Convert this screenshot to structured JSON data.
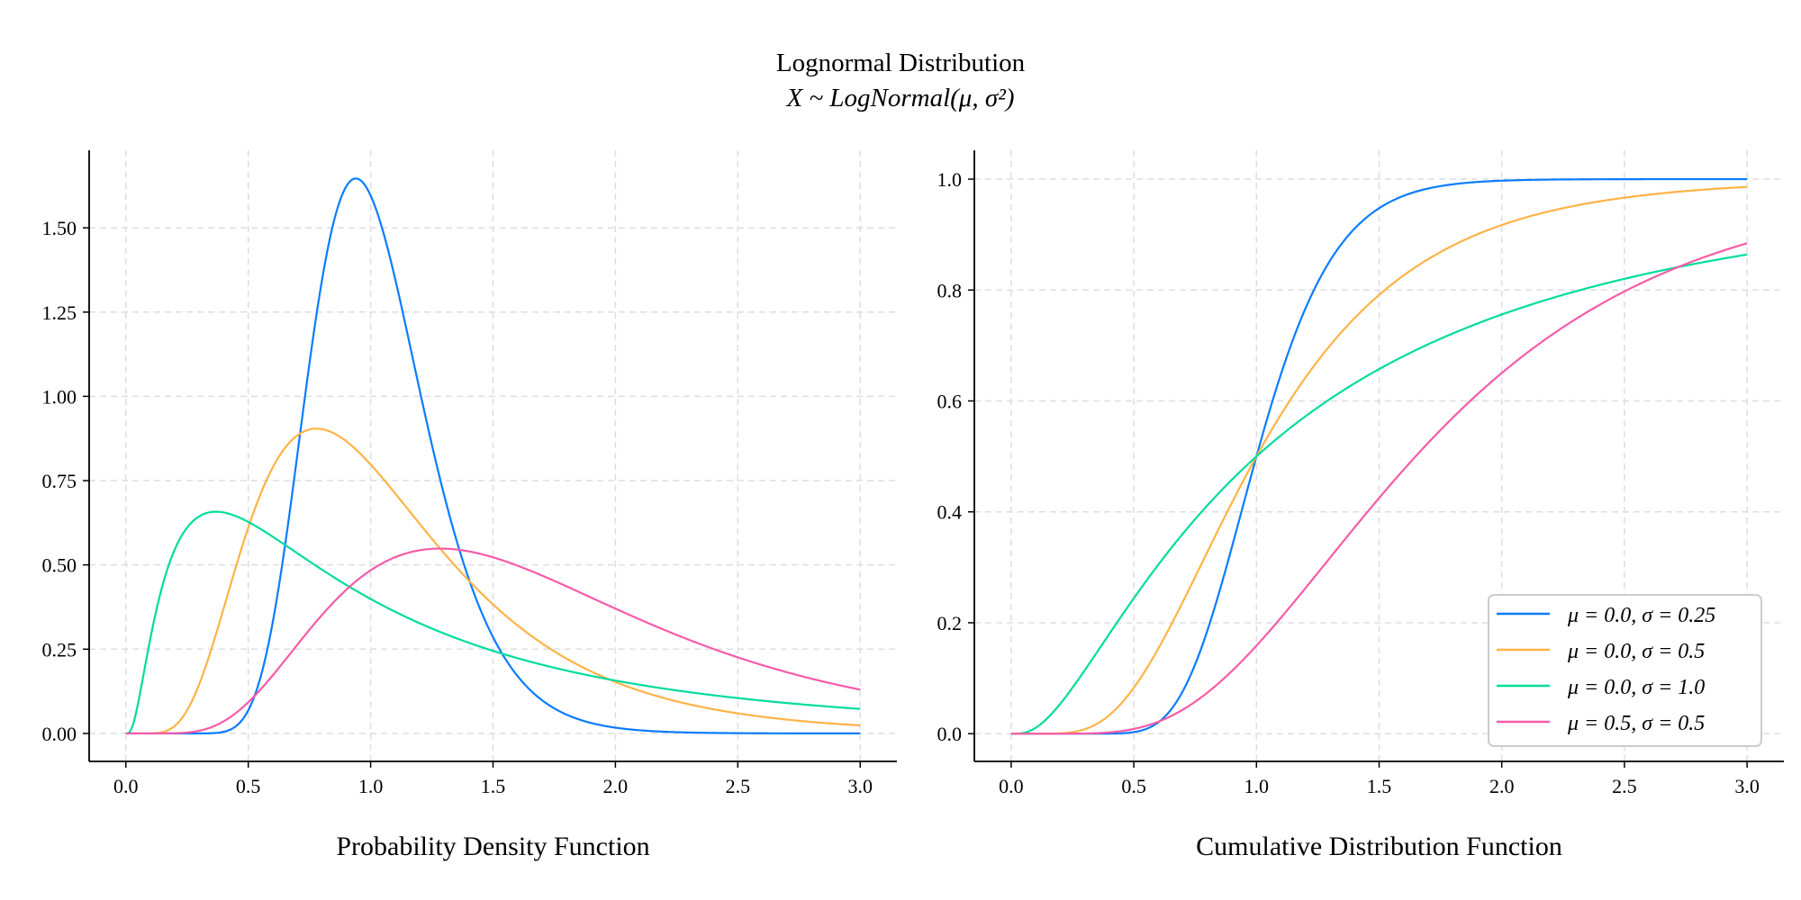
{
  "chart_data": {
    "title": "Lognormal Distribution",
    "subtitle": "X ~ LogNormal(μ, σ²)",
    "series": [
      {
        "name": "μ = 0.0, σ = 0.25",
        "mu": 0.0,
        "sigma": 0.25,
        "color": "#0a7cff"
      },
      {
        "name": "μ = 0.0, σ = 0.5",
        "mu": 0.0,
        "sigma": 0.5,
        "color": "#ffb347"
      },
      {
        "name": "μ = 0.0, σ = 1.0",
        "mu": 0.0,
        "sigma": 1.0,
        "color": "#00dc9c"
      },
      {
        "name": "μ = 0.5, σ = 0.5",
        "mu": 0.5,
        "sigma": 0.5,
        "color": "#f65ba8"
      }
    ],
    "x_domain": [
      0,
      3
    ],
    "panels": [
      {
        "type": "line",
        "function": "pdf",
        "xlabel": "Probability Density Function",
        "ylabel": "",
        "xlim": [
          -0.15,
          3.15
        ],
        "ylim": [
          -0.083,
          1.73
        ],
        "xticks": [
          "0.0",
          "0.5",
          "1.0",
          "1.5",
          "2.0",
          "2.5",
          "3.0"
        ],
        "yticks": [
          "0.00",
          "0.25",
          "0.50",
          "0.75",
          "1.00",
          "1.25",
          "1.50"
        ],
        "grid": true,
        "legend": "none"
      },
      {
        "type": "line",
        "function": "cdf",
        "xlabel": "Cumulative Distribution Function",
        "ylabel": "",
        "xlim": [
          -0.15,
          3.15
        ],
        "ylim": [
          -0.05,
          1.052
        ],
        "xticks": [
          "0.0",
          "0.5",
          "1.0",
          "1.5",
          "2.0",
          "2.5",
          "3.0"
        ],
        "yticks": [
          "0.0",
          "0.2",
          "0.4",
          "0.6",
          "0.8",
          "1.0"
        ],
        "grid": true,
        "legend": "lower-right"
      }
    ]
  }
}
